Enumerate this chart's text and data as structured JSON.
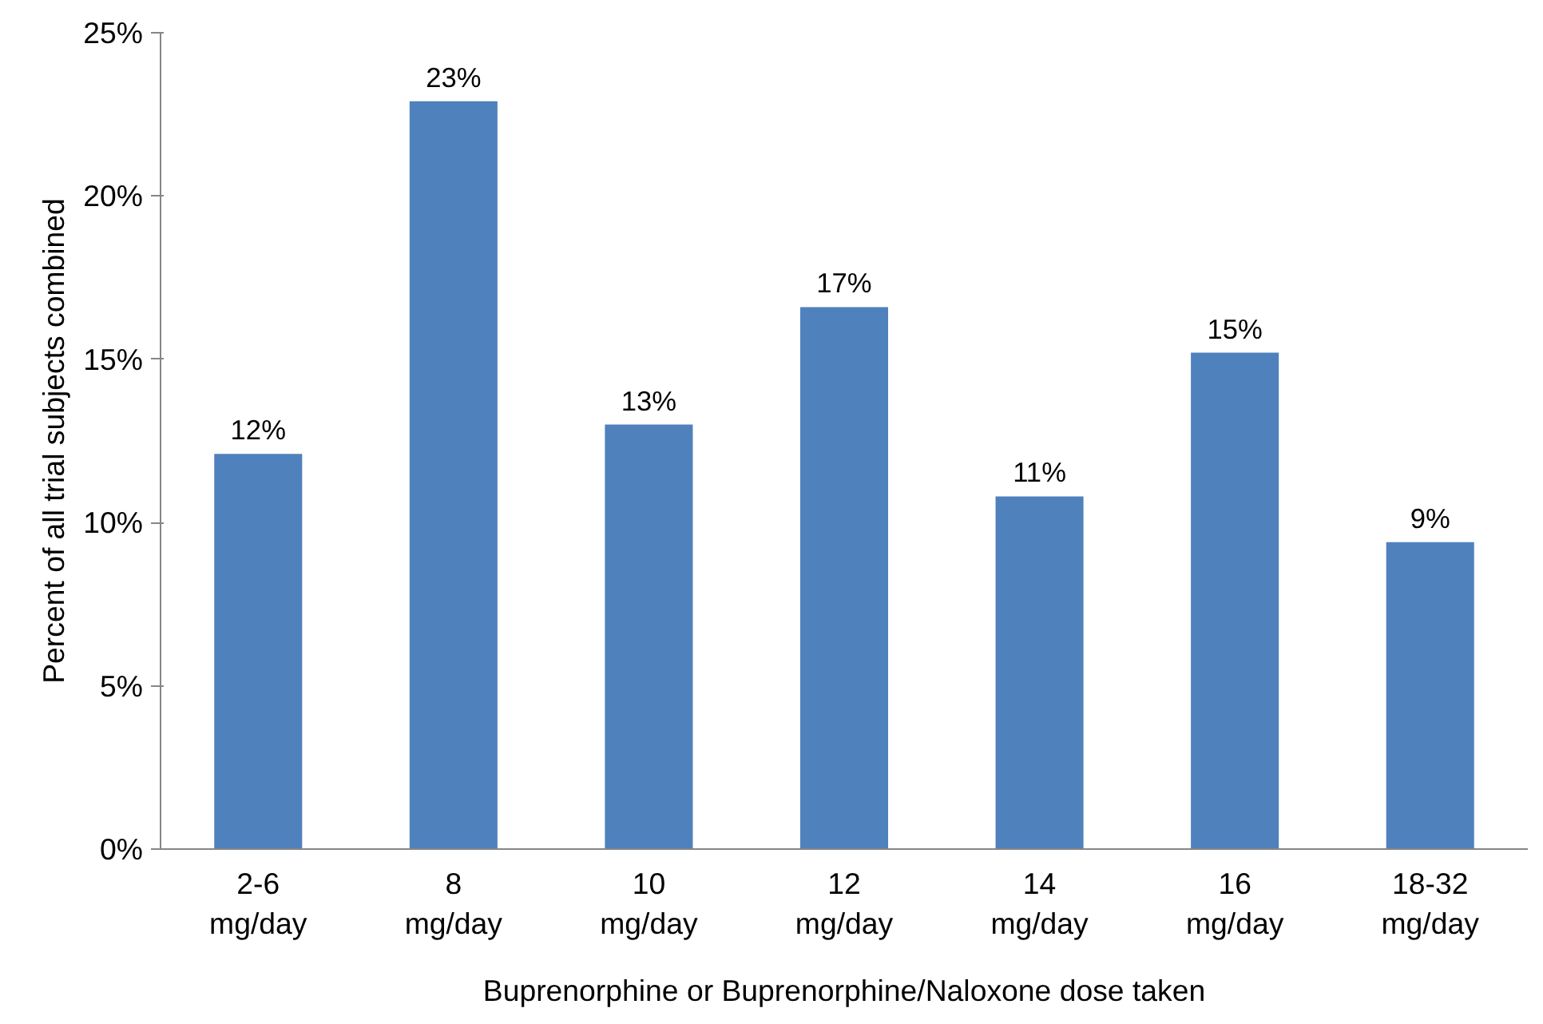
{
  "chart_data": {
    "type": "bar",
    "categories": [
      "2-6 mg/day",
      "8 mg/day",
      "10 mg/day",
      "12 mg/day",
      "14 mg/day",
      "16 mg/day",
      "18-32 mg/day"
    ],
    "values": [
      12.1,
      22.9,
      13.0,
      16.6,
      10.8,
      15.2,
      9.4
    ],
    "value_labels": [
      "12%",
      "23%",
      "13%",
      "17%",
      "11%",
      "15%",
      "9%"
    ],
    "color": "#4f81bd",
    "xlabel": "Buprenorphine or Buprenorphine/Naloxone dose taken",
    "ylabel": "Percent of all trial subjects combined",
    "ylim": [
      0,
      25
    ],
    "yticks": [
      {
        "value": 0,
        "label": "0%"
      },
      {
        "value": 5,
        "label": "5%"
      },
      {
        "value": 10,
        "label": "10%"
      },
      {
        "value": 15,
        "label": "15%"
      },
      {
        "value": 20,
        "label": "20%"
      },
      {
        "value": 25,
        "label": "25%"
      }
    ],
    "grid": false
  }
}
